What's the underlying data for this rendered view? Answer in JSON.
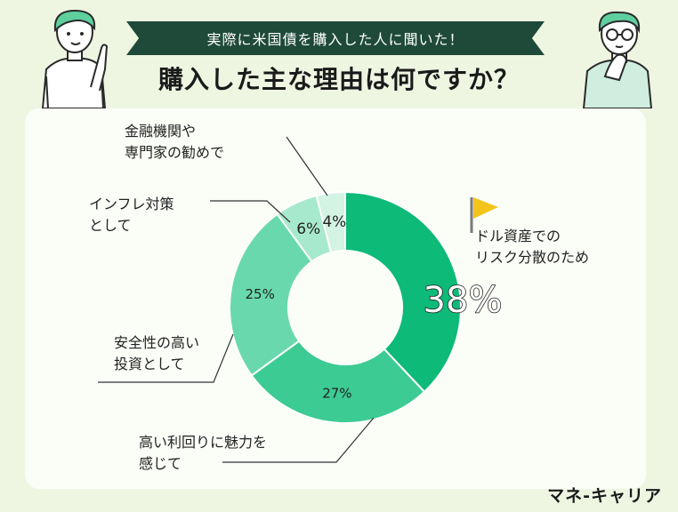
{
  "header": {
    "banner": "実際に米国債を購入した人に聞いた！",
    "title": "購入した主な理由は何ですか？"
  },
  "brand": "マネ-キャリア",
  "colors": {
    "background": "#eef6e2",
    "banner": "#1f4a3a",
    "flag": "#f3c51c"
  },
  "chart_data": {
    "type": "pie",
    "donut": true,
    "categories": [
      "ドル資産でのリスク分散のため",
      "高い利回りに魅力を感じて",
      "安全性の高い投資として",
      "インフレ対策として",
      "金融機関や専門家の勧めで"
    ],
    "values": [
      38,
      27,
      25,
      6,
      4
    ],
    "value_labels": [
      "38%",
      "27%",
      "25%",
      "6%",
      "4%"
    ],
    "label_lines": [
      [
        "ドル資産での",
        "リスク分散のため"
      ],
      [
        "高い利回りに魅力を",
        "感じて"
      ],
      [
        "安全性の高い",
        "投資として"
      ],
      [
        "インフレ対策",
        "として"
      ],
      [
        "金融機関や",
        "専門家の勧めで"
      ]
    ],
    "colors": [
      "#0dba78",
      "#3ccb92",
      "#69d9ad",
      "#a7e9cc",
      "#d3f3e3"
    ]
  }
}
